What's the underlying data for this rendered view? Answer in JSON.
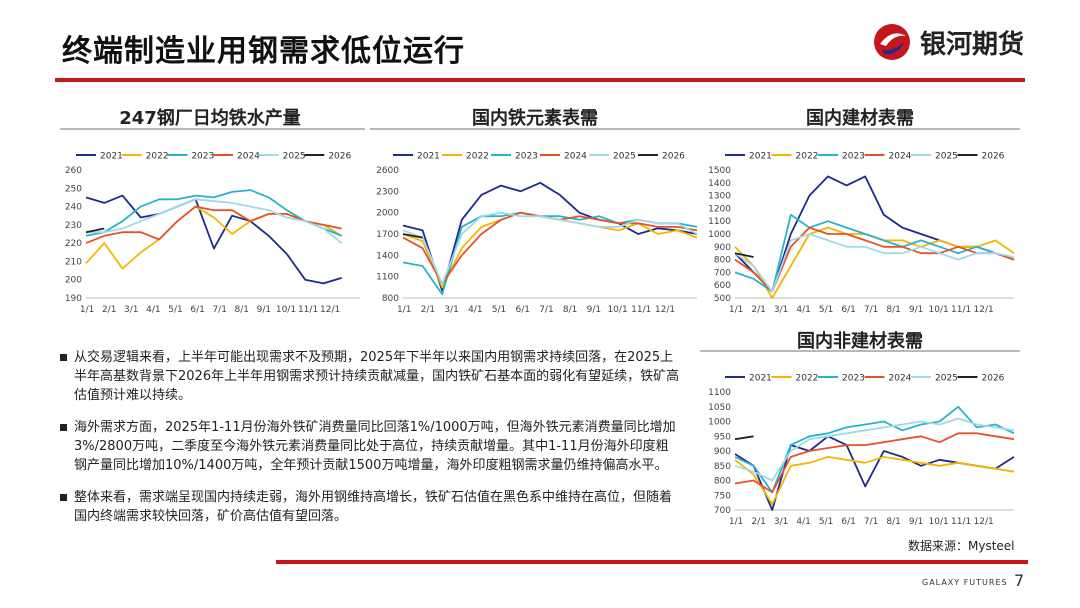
{
  "slide": {
    "title": "终端制造业用钢需求低位运行",
    "brand": "银河期货",
    "source": "数据来源：Mysteel",
    "footer_brand": "GALAXY FUTURES",
    "page_number": "7",
    "accent_color": "#c4161c"
  },
  "panels": {
    "p1": "247钢厂日均铁水产量",
    "p2": "国内铁元素表需",
    "p3": "国内建材表需",
    "p4": "国内非建材表需"
  },
  "bullets": [
    "从交易逻辑来看，上半年可能出现需求不及预期，2025年下半年以来国内用钢需求持续回落，在2025上半年高基数背景下2026年上半年用钢需求预计持续贡献减量，国内铁矿石基本面的弱化有望延续，铁矿高估值预计难以持续。",
    "海外需求方面，2025年1-11月份海外铁矿消费量同比回落1%/1000万吨，但海外铁元素消费量同比增加3%/2800万吨，二季度至今海外铁元素消费量同比处于高位，持续贡献增量。其中1-11月份海外印度粗钢产量同比增加10%/1400万吨，全年预计贡献1500万吨增量，海外印度粗钢需求量仍维持偏高水平。",
    "整体来看，需求端呈现国内持续走弱，海外用钢维持高增长，铁矿石估值在黑色系中维持在高位，但随着国内终端需求较快回落，矿价高估值有望回落。"
  ],
  "chart_data": [
    {
      "type": "line",
      "title": "247钢厂日均铁水产量",
      "x_ticks": [
        "1/1",
        "2/1",
        "3/1",
        "4/1",
        "5/1",
        "6/1",
        "7/1",
        "8/1",
        "9/1",
        "10/1",
        "11/1",
        "12/1"
      ],
      "ylim": [
        190,
        260
      ],
      "y_ticks": [
        190,
        200,
        210,
        220,
        230,
        240,
        250,
        260
      ],
      "legend_position": "top",
      "series": [
        {
          "name": "2021",
          "color": "#1f2a8c",
          "values": [
            245,
            242,
            246,
            234,
            236,
            240,
            244,
            217,
            235,
            232,
            224,
            214,
            200,
            198,
            201
          ]
        },
        {
          "name": "2022",
          "color": "#f2b700",
          "values": [
            209,
            220,
            206,
            215,
            222,
            232,
            240,
            234,
            225,
            232,
            236,
            236,
            232,
            230,
            224
          ]
        },
        {
          "name": "2023",
          "color": "#28b4c8",
          "values": [
            224,
            226,
            232,
            240,
            244,
            244,
            246,
            245,
            248,
            249,
            245,
            238,
            232,
            228,
            224
          ]
        },
        {
          "name": "2024",
          "color": "#e8502a",
          "values": [
            220,
            224,
            226,
            226,
            222,
            232,
            240,
            238,
            238,
            232,
            236,
            236,
            232,
            230,
            228
          ]
        },
        {
          "name": "2025",
          "color": "#9fd9ea",
          "values": [
            226,
            226,
            228,
            232,
            236,
            240,
            244,
            243,
            242,
            240,
            238,
            234,
            232,
            228,
            220
          ]
        },
        {
          "name": "2026",
          "color": "#222222",
          "values": [
            226,
            228
          ]
        }
      ]
    },
    {
      "type": "line",
      "title": "国内铁元素表需",
      "x_ticks": [
        "1/1",
        "2/1",
        "3/1",
        "4/1",
        "5/1",
        "6/1",
        "7/1",
        "8/1",
        "9/1",
        "10/1",
        "11/1",
        "12/1"
      ],
      "ylim": [
        800,
        2600
      ],
      "y_ticks": [
        800,
        1100,
        1400,
        1700,
        2000,
        2300,
        2600
      ],
      "legend_position": "top",
      "series": [
        {
          "name": "2021",
          "color": "#1f2a8c",
          "values": [
            1820,
            1750,
            900,
            1900,
            2250,
            2380,
            2300,
            2420,
            2250,
            2000,
            1900,
            1850,
            1700,
            1780,
            1750,
            1700
          ]
        },
        {
          "name": "2022",
          "color": "#f2b700",
          "values": [
            1700,
            1600,
            950,
            1500,
            1800,
            1900,
            2000,
            1950,
            1900,
            1850,
            1800,
            1750,
            1850,
            1700,
            1750,
            1650
          ]
        },
        {
          "name": "2023",
          "color": "#28b4c8",
          "values": [
            1300,
            1250,
            850,
            1800,
            1950,
            1950,
            2000,
            1950,
            1950,
            1900,
            1950,
            1850,
            1900,
            1850,
            1850,
            1800
          ]
        },
        {
          "name": "2024",
          "color": "#e8502a",
          "values": [
            1650,
            1500,
            1000,
            1400,
            1700,
            1900,
            2000,
            1950,
            1900,
            1950,
            1900,
            1850,
            1850,
            1800,
            1800,
            1750
          ]
        },
        {
          "name": "2025",
          "color": "#9fd9ea",
          "values": [
            1750,
            1650,
            1000,
            1700,
            1950,
            2000,
            1950,
            1950,
            1900,
            1850,
            1800,
            1800,
            1900,
            1850,
            1850,
            1700
          ]
        },
        {
          "name": "2026",
          "color": "#222222",
          "values": [
            1700,
            1650
          ]
        }
      ]
    },
    {
      "type": "line",
      "title": "国内建材表需",
      "x_ticks": [
        "1/1",
        "2/1",
        "3/1",
        "4/1",
        "5/1",
        "6/1",
        "7/1",
        "8/1",
        "9/1",
        "10/1",
        "11/1",
        "12/1"
      ],
      "ylim": [
        500,
        1500
      ],
      "y_ticks": [
        500,
        600,
        700,
        800,
        900,
        1000,
        1100,
        1200,
        1300,
        1400,
        1500
      ],
      "legend_position": "top",
      "series": [
        {
          "name": "2021",
          "color": "#1f2a8c",
          "values": [
            850,
            700,
            550,
            1000,
            1300,
            1450,
            1380,
            1450,
            1150,
            1050,
            1000,
            950,
            900,
            900,
            850,
            800
          ]
        },
        {
          "name": "2022",
          "color": "#f2b700",
          "values": [
            900,
            750,
            500,
            750,
            1000,
            1050,
            1000,
            1000,
            950,
            950,
            900,
            950,
            900,
            900,
            950,
            850
          ]
        },
        {
          "name": "2023",
          "color": "#28b4c8",
          "values": [
            700,
            650,
            550,
            1150,
            1050,
            1100,
            1050,
            1000,
            950,
            900,
            950,
            900,
            850,
            900,
            850,
            800
          ]
        },
        {
          "name": "2024",
          "color": "#e8502a",
          "values": [
            800,
            700,
            550,
            900,
            1050,
            1000,
            1000,
            950,
            900,
            900,
            850,
            850,
            900,
            850,
            850,
            800
          ]
        },
        {
          "name": "2025",
          "color": "#9fd9ea",
          "values": [
            850,
            750,
            550,
            950,
            1000,
            950,
            900,
            900,
            850,
            850,
            900,
            850,
            800,
            850,
            850,
            820
          ]
        },
        {
          "name": "2026",
          "color": "#222222",
          "values": [
            850,
            820
          ]
        }
      ]
    },
    {
      "type": "line",
      "title": "国内非建材表需",
      "x_ticks": [
        "1/1",
        "2/1",
        "3/1",
        "4/1",
        "5/1",
        "6/1",
        "7/1",
        "8/1",
        "9/1",
        "10/1",
        "11/1",
        "12/1"
      ],
      "ylim": [
        700,
        1100
      ],
      "y_ticks": [
        700,
        750,
        800,
        850,
        900,
        950,
        1000,
        1050,
        1100
      ],
      "legend_position": "top",
      "series": [
        {
          "name": "2021",
          "color": "#1f2a8c",
          "values": [
            890,
            850,
            700,
            920,
            900,
            950,
            920,
            780,
            900,
            880,
            850,
            870,
            860,
            850,
            840,
            880
          ]
        },
        {
          "name": "2022",
          "color": "#f2b700",
          "values": [
            870,
            820,
            720,
            850,
            860,
            880,
            870,
            860,
            880,
            870,
            860,
            850,
            860,
            850,
            840,
            830
          ]
        },
        {
          "name": "2023",
          "color": "#28b4c8",
          "values": [
            880,
            850,
            760,
            920,
            950,
            960,
            980,
            990,
            1000,
            970,
            990,
            1000,
            1050,
            980,
            990,
            960
          ]
        },
        {
          "name": "2024",
          "color": "#e8502a",
          "values": [
            790,
            800,
            760,
            880,
            900,
            910,
            920,
            920,
            930,
            940,
            950,
            930,
            960,
            960,
            950,
            940
          ]
        },
        {
          "name": "2025",
          "color": "#9fd9ea",
          "values": [
            850,
            830,
            800,
            900,
            940,
            950,
            960,
            970,
            980,
            990,
            1000,
            990,
            1010,
            990,
            980,
            970
          ]
        },
        {
          "name": "2026",
          "color": "#222222",
          "values": [
            940,
            950
          ]
        }
      ]
    }
  ]
}
